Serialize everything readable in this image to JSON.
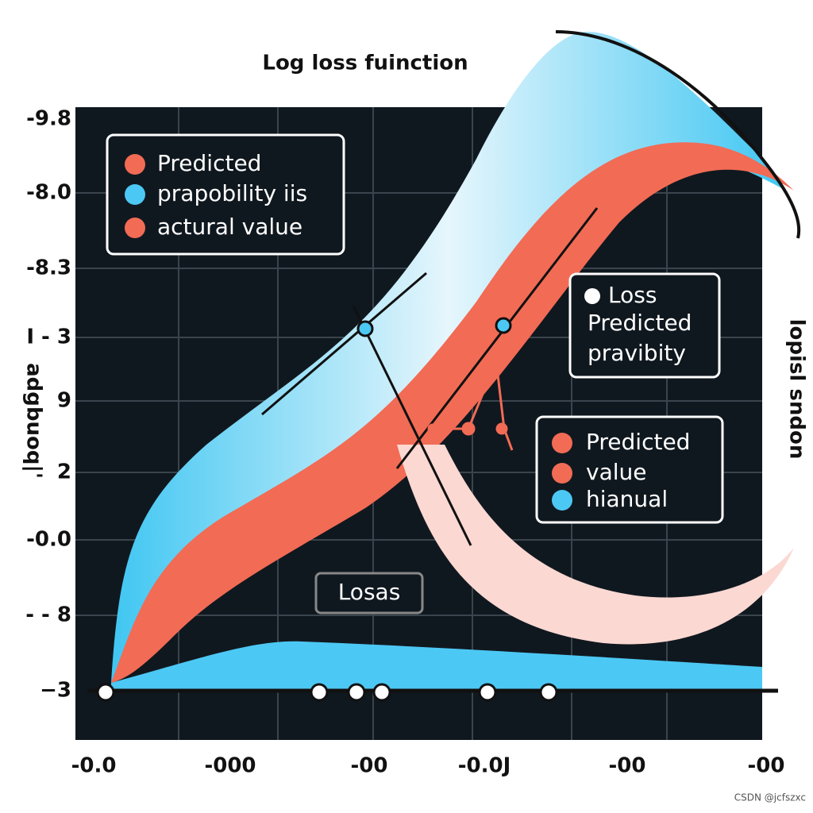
{
  "title": "Log loss fuinction",
  "y_labels": [
    "-9.8",
    "-8.0",
    "-8.3",
    "I - 3",
    "9",
    "2",
    "-0.0",
    "- - 8",
    "−3"
  ],
  "x_labels": [
    "-0.0",
    "-000",
    "-00",
    "-0.0J",
    "-00",
    "-00"
  ],
  "legend_left": [
    "Predicted",
    "prapobility iis",
    "actural value"
  ],
  "legend_right_top": [
    "Loss",
    "Predicted",
    "pravibity"
  ],
  "legend_right_bottom": [
    "Predicted",
    "value",
    "hianual"
  ],
  "box_label": "Losas",
  "side_label_left": "adgbuoq|'",
  "side_label_right": "lopisl sndon",
  "watermark": "CSDN @jcfszxc"
}
